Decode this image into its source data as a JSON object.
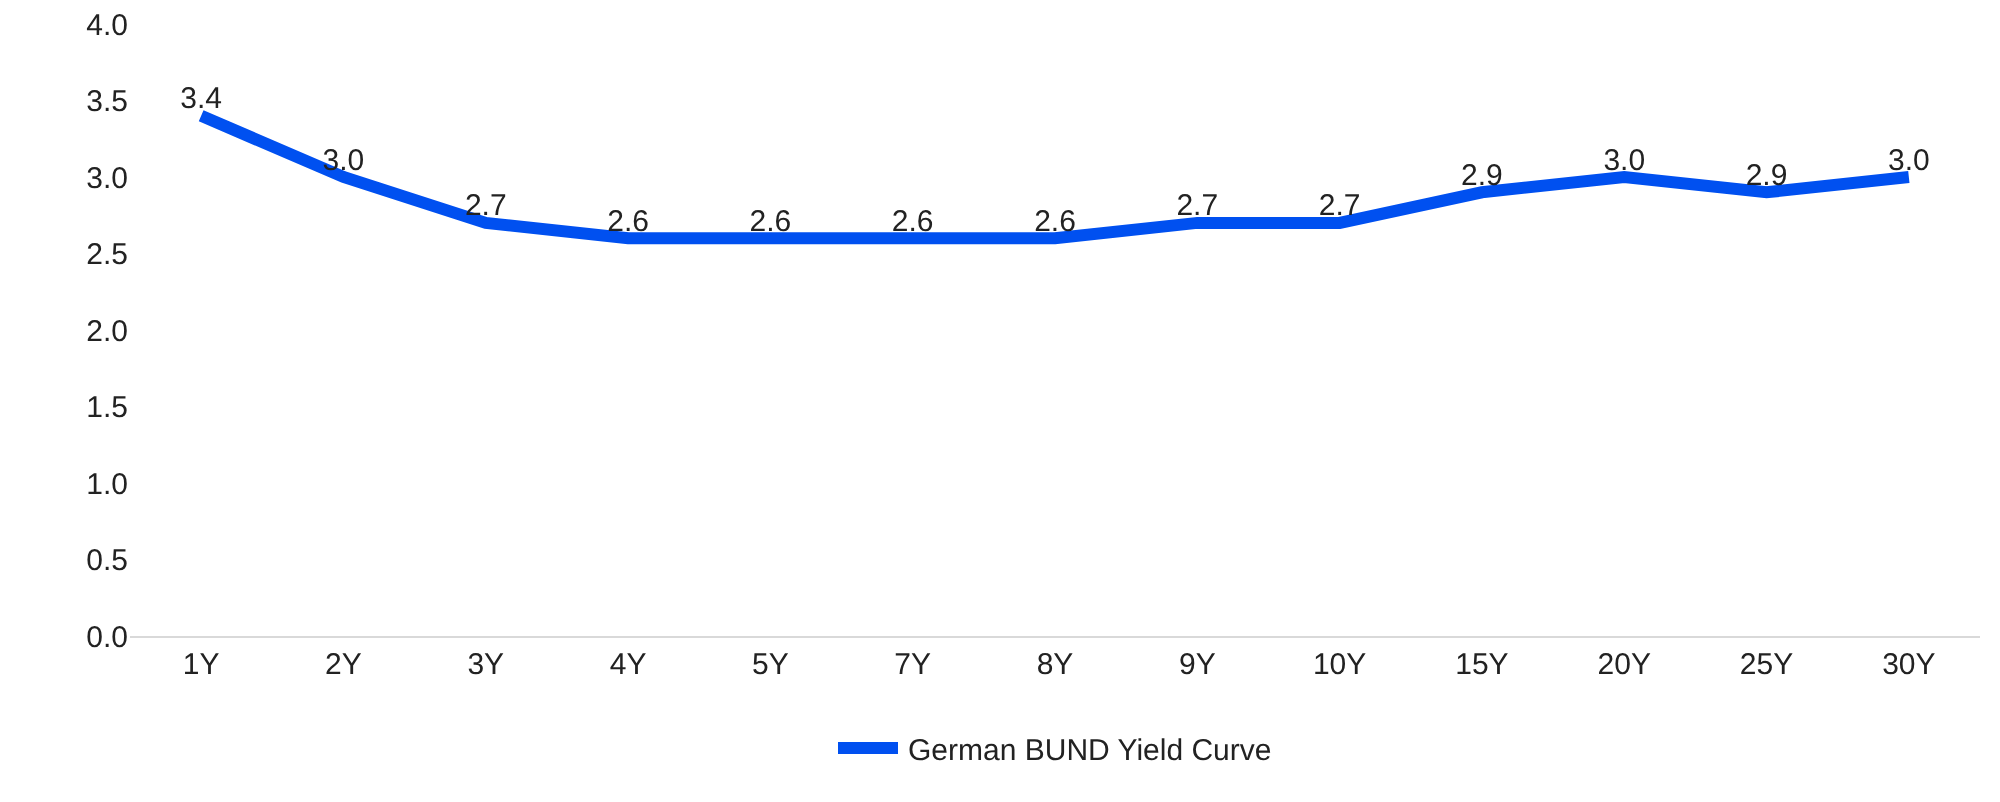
{
  "chart_data": {
    "type": "line",
    "categories": [
      "1Y",
      "2Y",
      "3Y",
      "4Y",
      "5Y",
      "7Y",
      "8Y",
      "9Y",
      "10Y",
      "15Y",
      "20Y",
      "25Y",
      "30Y"
    ],
    "series": [
      {
        "name": "German BUND Yield Curve",
        "color": "#0050f0",
        "values": [
          3.4,
          3.0,
          2.7,
          2.6,
          2.6,
          2.6,
          2.6,
          2.7,
          2.7,
          2.9,
          3.0,
          2.9,
          3.0
        ],
        "value_labels": [
          "3.4",
          "3.0",
          "2.7",
          "2.6",
          "2.6",
          "2.6",
          "2.6",
          "2.7",
          "2.7",
          "2.9",
          "3.0",
          "2.9",
          "3.0"
        ]
      }
    ],
    "ylim": [
      0,
      4.0
    ],
    "yticks": [
      {
        "value": 0,
        "label": "0.0"
      },
      {
        "value": 0.5,
        "label": "0.5"
      },
      {
        "value": 1,
        "label": "1.0"
      },
      {
        "value": 1.5,
        "label": "1.5"
      },
      {
        "value": 2,
        "label": "2.0"
      },
      {
        "value": 2.5,
        "label": "2.5"
      },
      {
        "value": 3,
        "label": "3.0"
      },
      {
        "value": 3.5,
        "label": "3.5"
      },
      {
        "value": 4,
        "label": "4.0"
      }
    ],
    "grid": false,
    "legend": "bottom",
    "marker": "none",
    "line_style": "solid"
  }
}
